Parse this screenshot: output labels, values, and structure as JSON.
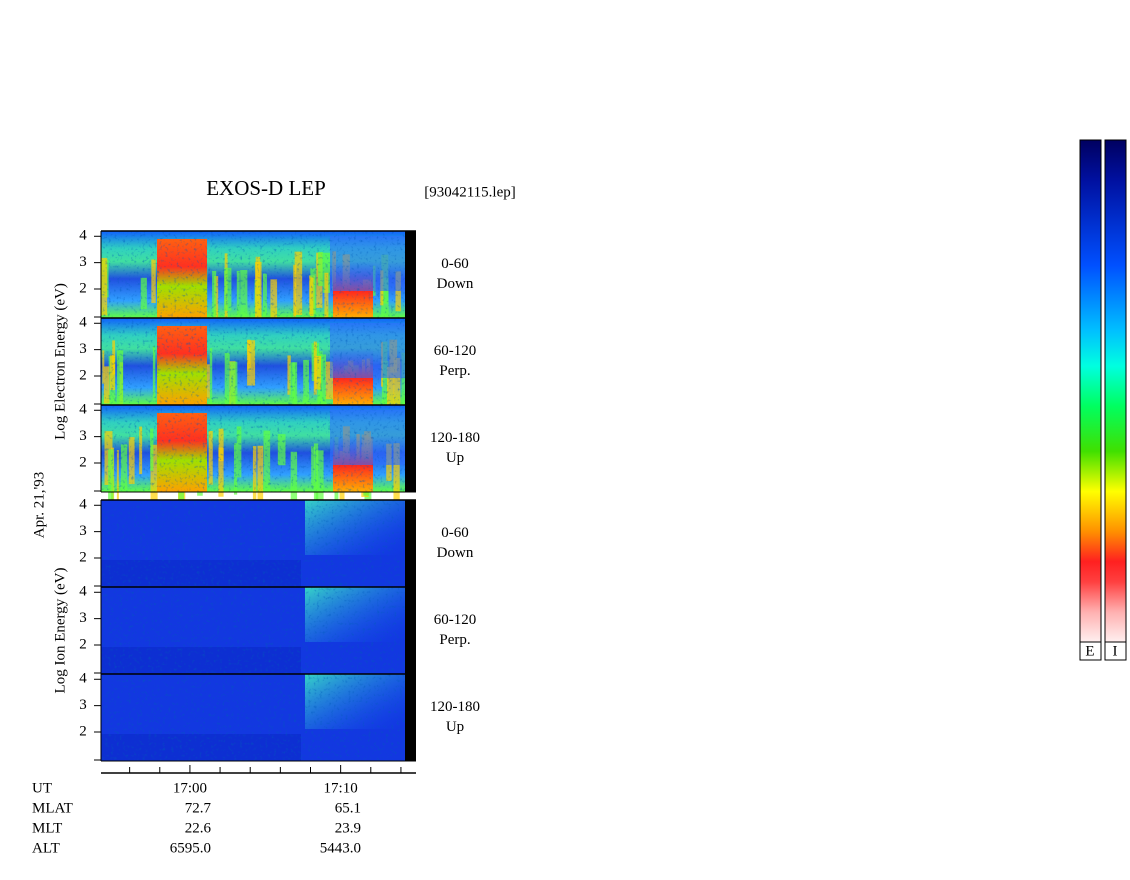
{
  "title": "EXOS-D LEP",
  "file": "[93042115.lep]",
  "chart_data": {
    "type": "spectrogram",
    "date_label": "Apr. 21,'93",
    "groups": [
      {
        "ylabel": "Log  Electron  Energy (eV)",
        "species": "electron",
        "panels": [
          {
            "label": [
              "0-60",
              "Down"
            ]
          },
          {
            "label": [
              "60-120",
              "Perp."
            ]
          },
          {
            "label": [
              "120-180",
              "Up"
            ]
          }
        ]
      },
      {
        "ylabel": "Log  Ion  Energy (eV)",
        "species": "ion",
        "panels": [
          {
            "label": [
              "0-60",
              "Down"
            ]
          },
          {
            "label": [
              "60-120",
              "Perp."
            ]
          },
          {
            "label": [
              "120-180",
              "Up"
            ]
          }
        ]
      }
    ],
    "ylim": [
      0.9,
      4.2
    ],
    "yticks": [
      2,
      3,
      4
    ],
    "xlim": [
      -5.9,
      15
    ],
    "xticks": [
      {
        "value": 0,
        "label": "17:00"
      },
      {
        "value": 10,
        "label": "17:10"
      }
    ],
    "xminor": [
      -4,
      -2,
      2,
      4,
      6,
      8,
      12,
      14
    ]
  },
  "orbit": {
    "ut_label": "UT",
    "rows": [
      {
        "name": "MLAT",
        "values": [
          "72.7",
          "65.1"
        ]
      },
      {
        "name": "MLT",
        "values": [
          "22.6",
          "23.9"
        ]
      },
      {
        "name": "ALT",
        "values": [
          "6595.0",
          "5443.0"
        ]
      }
    ]
  },
  "colorbar": {
    "labels": [
      "E",
      "I"
    ]
  }
}
